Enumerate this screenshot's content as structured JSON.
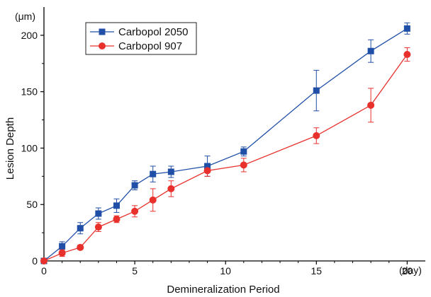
{
  "chart_data": {
    "type": "line",
    "xlabel": "Demineralization Period",
    "ylabel": "Lesion Depth",
    "x_unit": "(day)",
    "y_unit": "(μm)",
    "xlim": [
      0,
      21
    ],
    "ylim": [
      0,
      225
    ],
    "x_ticks": [
      0,
      5,
      10,
      15,
      20
    ],
    "y_ticks": [
      0,
      50,
      100,
      150,
      200
    ],
    "grid": false,
    "legend_position": "top-left",
    "series": [
      {
        "name": "Carbopol 2050",
        "color": "#1f4fa6",
        "marker": "square",
        "x": [
          0,
          1,
          2,
          3,
          4,
          5,
          6,
          7,
          9,
          11,
          15,
          18,
          20
        ],
        "y": [
          0,
          13,
          29,
          42,
          49,
          67,
          77,
          79,
          84,
          97,
          151,
          186,
          206
        ],
        "err": [
          0,
          4,
          5,
          5,
          6,
          4,
          7,
          5,
          9,
          4,
          18,
          10,
          5
        ]
      },
      {
        "name": "Carbopol 907",
        "color": "#e8302c",
        "marker": "circle",
        "x": [
          0,
          1,
          2,
          3,
          4,
          5,
          6,
          7,
          9,
          11,
          15,
          18,
          20
        ],
        "y": [
          0,
          7,
          12,
          30,
          37,
          44,
          54,
          64,
          80,
          85,
          111,
          138,
          183
        ],
        "err": [
          0,
          3,
          2,
          4,
          3,
          5,
          10,
          7,
          5,
          6,
          7,
          15,
          6
        ]
      }
    ]
  }
}
